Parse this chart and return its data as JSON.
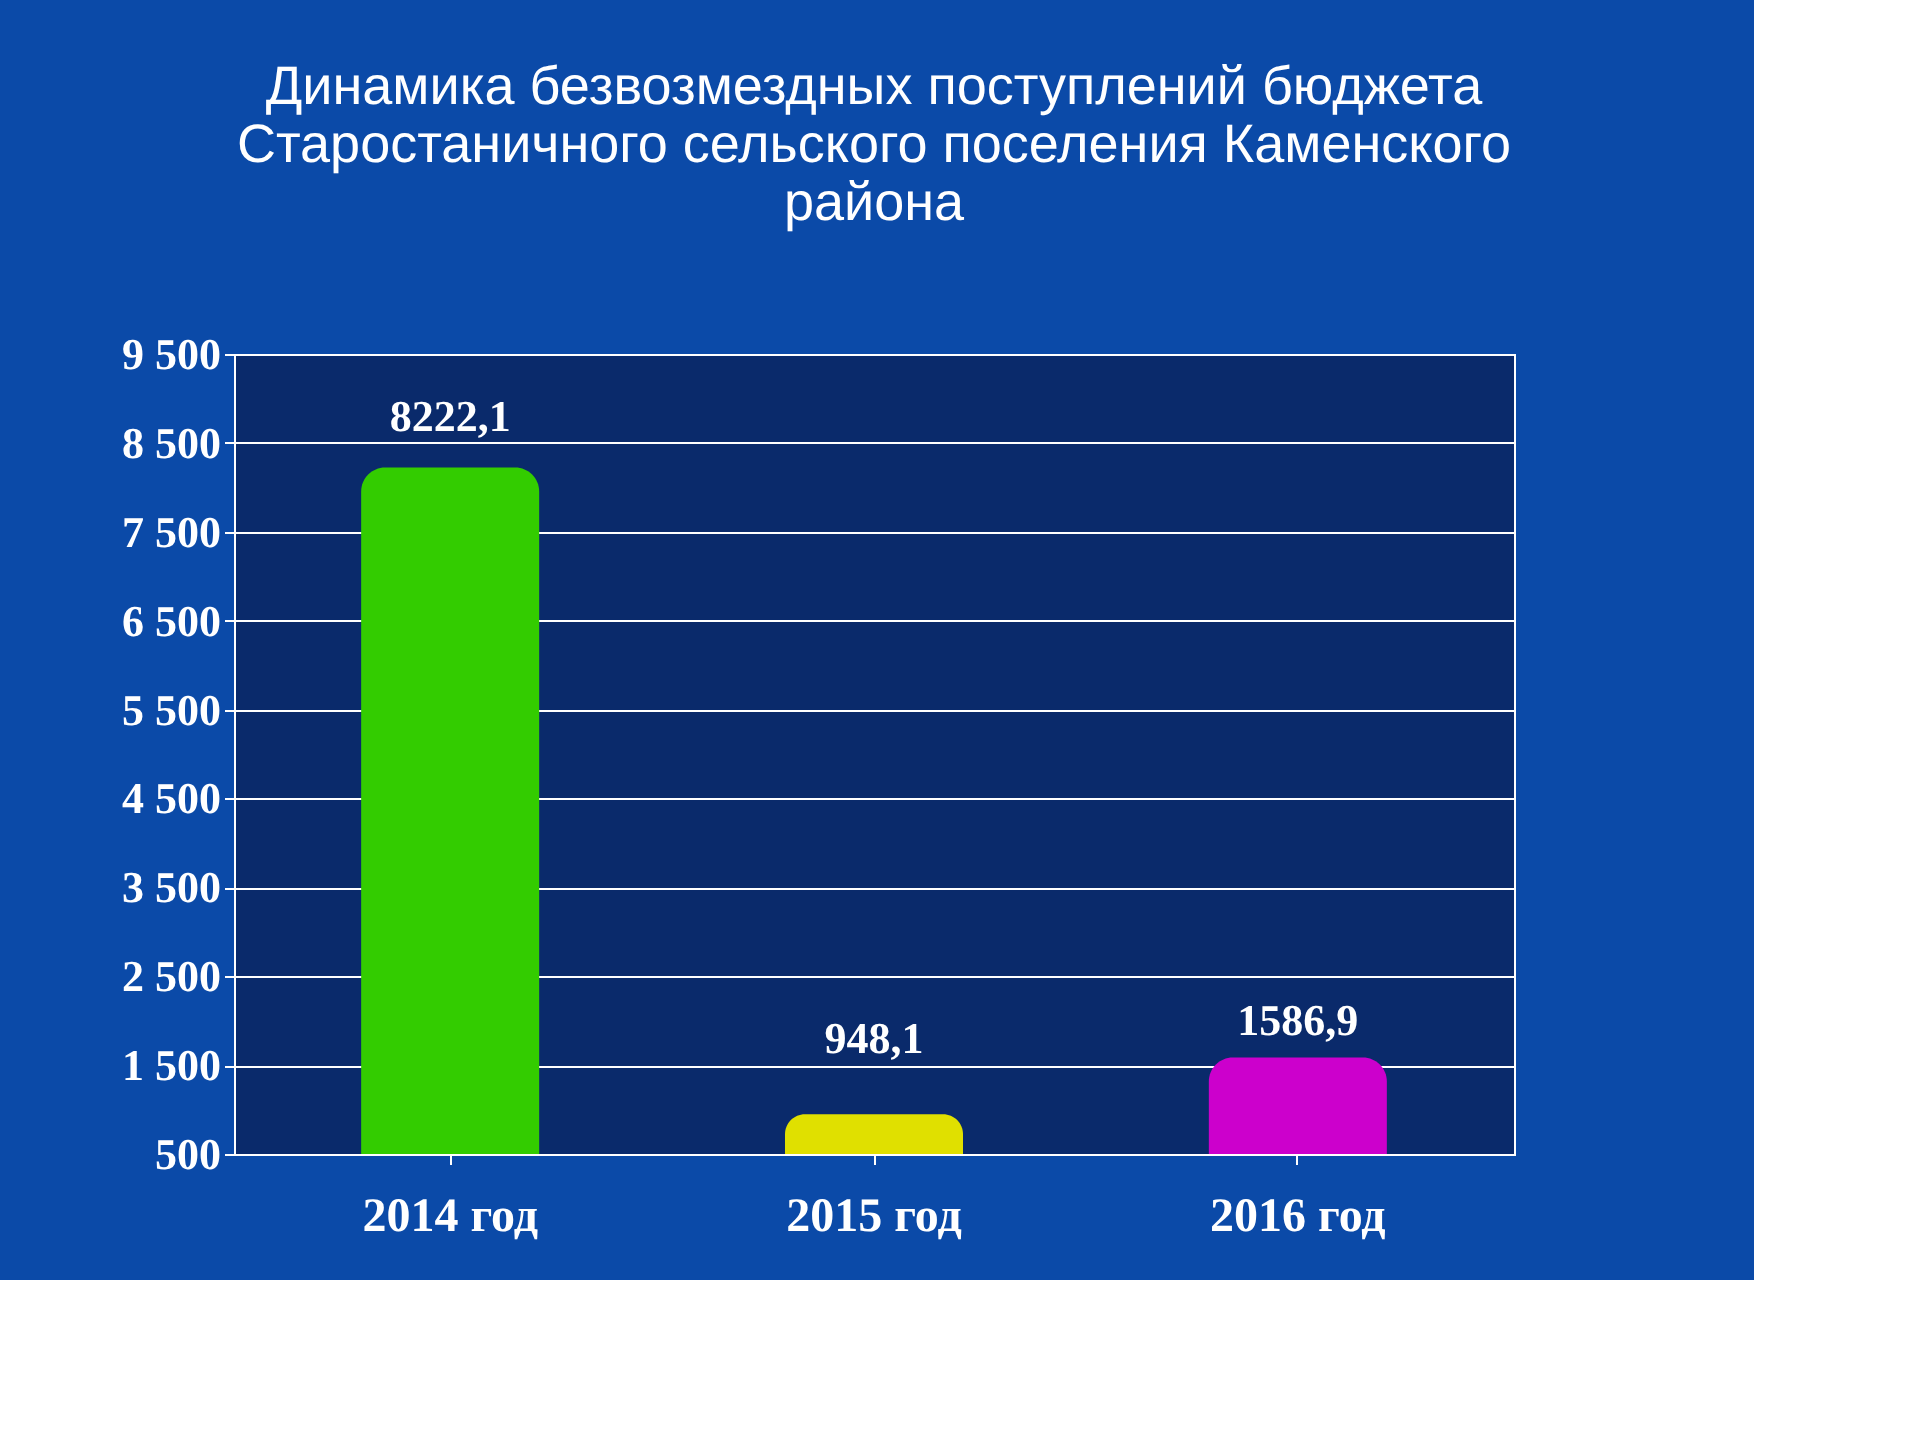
{
  "chart_data": {
    "type": "bar",
    "title": "Динамика безвозмездных поступлений бюджета\nСтаростаничного сельского поселения Каменского\nрайона",
    "categories": [
      "2014 год",
      "2015 год",
      "2016 год"
    ],
    "values": [
      8222.1,
      948.1,
      1586.9
    ],
    "colors": [
      "#33cc00",
      "#e0e000",
      "#cc00cc"
    ],
    "ylim": [
      500,
      9500
    ],
    "yticks": [
      {
        "value": 500,
        "label": "500"
      },
      {
        "value": 1500,
        "label": "1 500"
      },
      {
        "value": 2500,
        "label": "2 500"
      },
      {
        "value": 3500,
        "label": "3 500"
      },
      {
        "value": 4500,
        "label": "4 500"
      },
      {
        "value": 5500,
        "label": "5 500"
      },
      {
        "value": 6500,
        "label": "6 500"
      },
      {
        "value": 7500,
        "label": "7 500"
      },
      {
        "value": 8500,
        "label": "8 500"
      },
      {
        "value": 9500,
        "label": "9 500"
      }
    ],
    "value_labels": [
      "8222,1",
      "948,1",
      "1586,9"
    ],
    "grid": "y"
  }
}
